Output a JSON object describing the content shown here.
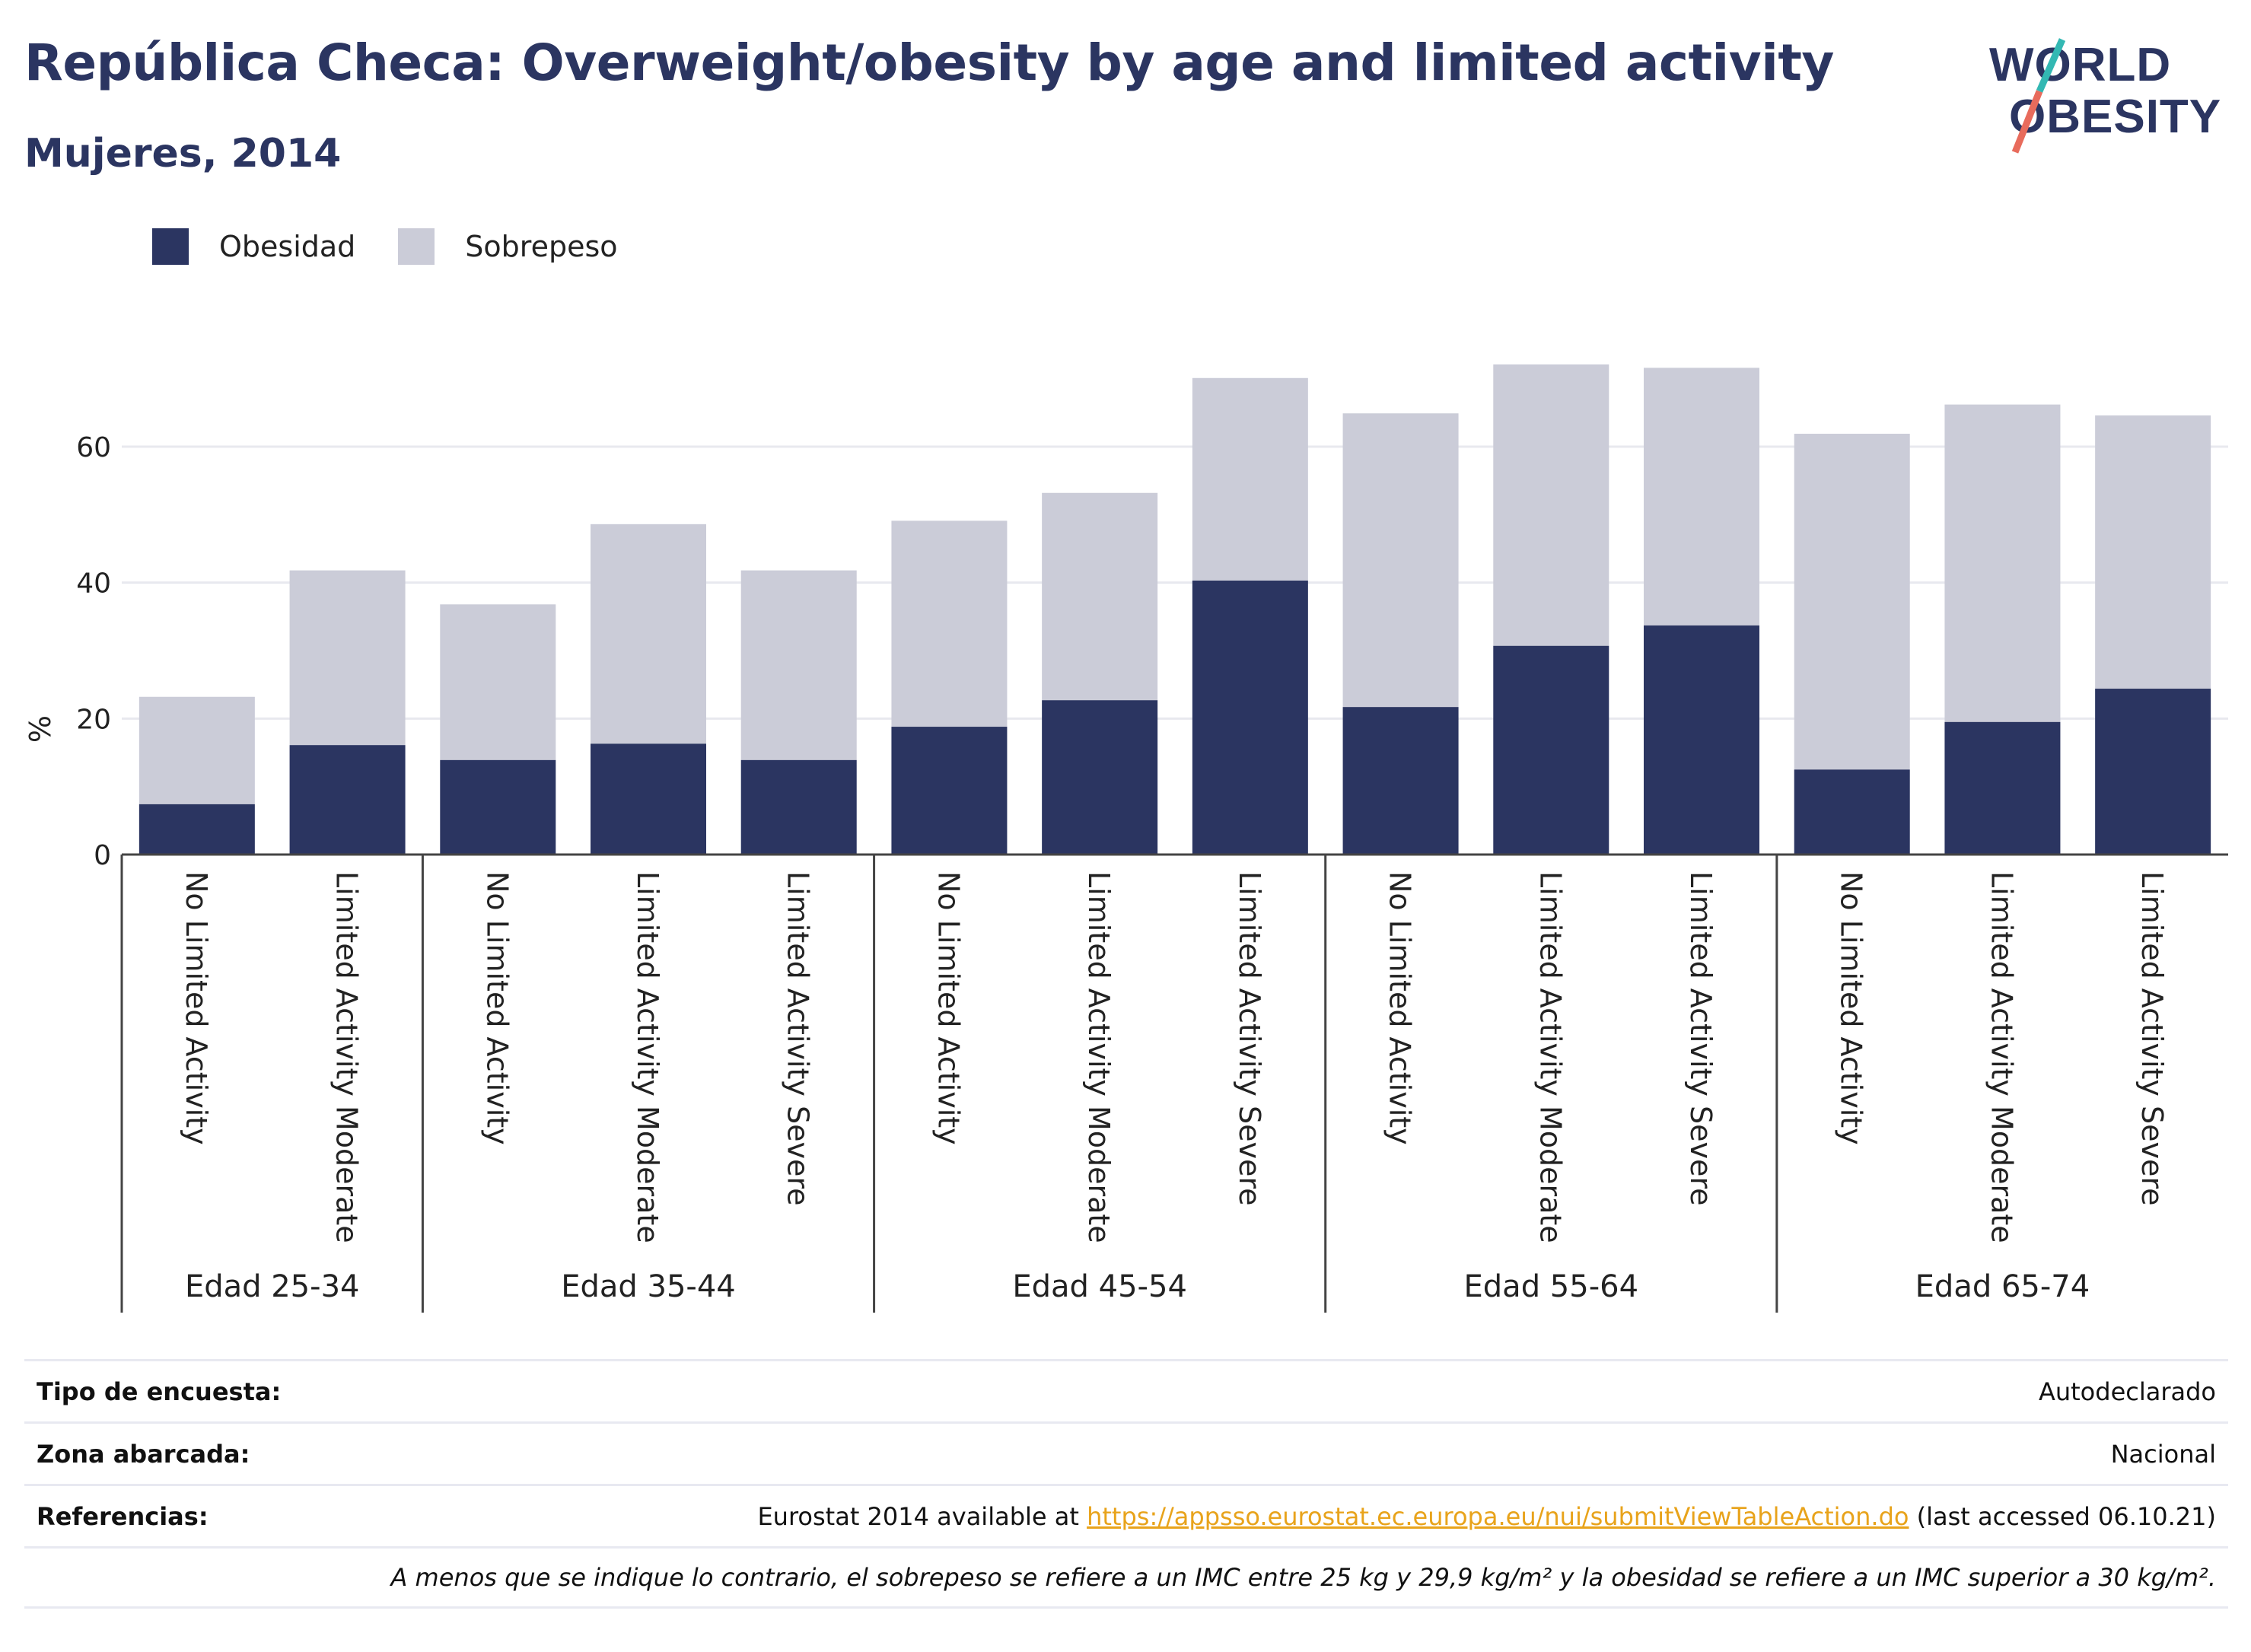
{
  "header": {
    "title": "República Checa: Overweight/obesity by age and limited activity",
    "subtitle": "Mujeres, 2014"
  },
  "logo": {
    "line1": "WORLD",
    "line2": "OBESITY"
  },
  "colors": {
    "obesity": "#2b3561",
    "overweight": "#cbccd8",
    "text": "#2b3561",
    "link": "#e8a31b"
  },
  "legend": [
    {
      "label": "Obesidad",
      "color": "#2b3561"
    },
    {
      "label": "Sobrepeso",
      "color": "#cbccd8"
    }
  ],
  "chart_data": {
    "type": "bar",
    "stacked": true,
    "ylabel": "%",
    "ylim": [
      0,
      75
    ],
    "yticks": [
      0,
      20,
      40,
      60
    ],
    "grid": true,
    "legend_position": "top-left",
    "groups": [
      {
        "label": "Edad 25-34",
        "categories": [
          "No Limited Activity",
          "Limited Activity Moderate"
        ]
      },
      {
        "label": "Edad 35-44",
        "categories": [
          "No Limited Activity",
          "Limited Activity Moderate",
          "Limited Activity Severe"
        ]
      },
      {
        "label": "Edad 45-54",
        "categories": [
          "No Limited Activity",
          "Limited Activity Moderate",
          "Limited Activity Severe"
        ]
      },
      {
        "label": "Edad 55-64",
        "categories": [
          "No Limited Activity",
          "Limited Activity Moderate",
          "Limited Activity Severe"
        ]
      },
      {
        "label": "Edad 65-74",
        "categories": [
          "No Limited Activity",
          "Limited Activity Moderate",
          "Limited Activity Severe"
        ]
      }
    ],
    "series": [
      {
        "name": "Obesidad",
        "values": [
          7.4,
          16.1,
          13.9,
          16.3,
          13.9,
          18.8,
          22.7,
          40.3,
          21.7,
          30.7,
          33.7,
          12.5,
          19.5,
          24.4
        ]
      },
      {
        "name": "Sobrepeso",
        "values": [
          15.8,
          25.7,
          22.9,
          32.3,
          27.9,
          30.3,
          30.5,
          29.8,
          43.2,
          41.4,
          37.9,
          49.4,
          46.7,
          40.2
        ]
      }
    ]
  },
  "footer": {
    "survey_label": "Tipo de encuesta:",
    "survey_value": "Autodeclarado",
    "area_label": "Zona abarcada:",
    "area_value": "Nacional",
    "refs_label": "Referencias:",
    "refs_prefix": "Eurostat 2014 available at ",
    "refs_link": "https://appsso.eurostat.ec.europa.eu/nui/submitViewTableAction.do",
    "refs_suffix": " (last accessed 06.10.21)",
    "note": "A menos que se indique lo contrario, el sobrepeso se refiere a un IMC entre 25 kg y 29,9 kg/m² y la obesidad se refiere a un IMC superior a 30 kg/m²."
  }
}
